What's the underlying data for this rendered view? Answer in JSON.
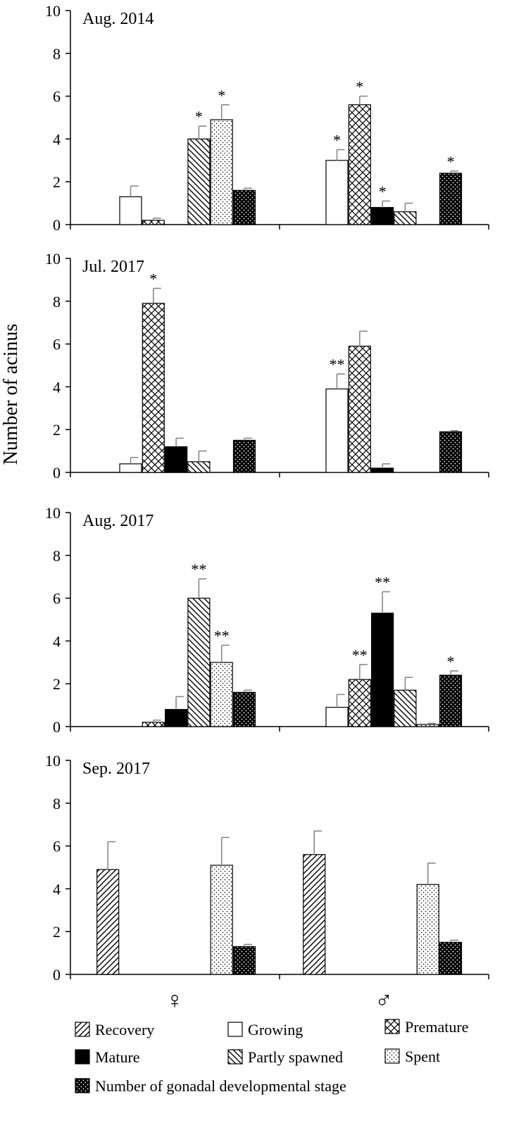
{
  "chart_data": {
    "type": "bar",
    "ylabel": "Number of acinus",
    "categories": [
      "♀",
      "♂"
    ],
    "ylim": [
      0,
      10
    ],
    "yticks": [
      0,
      2,
      4,
      6,
      8,
      10
    ],
    "legend_placement": "bottom",
    "series_styles": [
      {
        "name": "Recovery",
        "pattern": "fwd-hatch"
      },
      {
        "name": "Growing",
        "pattern": "white"
      },
      {
        "name": "Premature",
        "pattern": "crosshatch"
      },
      {
        "name": "Mature",
        "pattern": "black"
      },
      {
        "name": "Partly spawned",
        "pattern": "back-hatch"
      },
      {
        "name": "Spent",
        "pattern": "dots"
      },
      {
        "name": "Number of gonadal developmental stage",
        "pattern": "black-dots"
      }
    ],
    "legend_order": [
      0,
      1,
      2,
      3,
      4,
      5,
      6
    ],
    "panels": [
      {
        "title": "Aug. 2014",
        "groups": [
          {
            "values": [
              0,
              1.3,
              0.2,
              0,
              4.0,
              4.9,
              1.6
            ],
            "errors": [
              0,
              0.5,
              0.1,
              0,
              0.6,
              0.7,
              0.1
            ],
            "marks": [
              "",
              "",
              "",
              "",
              "*",
              "*",
              ""
            ]
          },
          {
            "values": [
              0,
              3.0,
              5.6,
              0.8,
              0.6,
              0,
              2.4
            ],
            "errors": [
              0,
              0.5,
              0.4,
              0.3,
              0.4,
              0,
              0.1
            ],
            "marks": [
              "",
              "*",
              "*",
              "*",
              "",
              "",
              "*"
            ]
          }
        ]
      },
      {
        "title": "Jul. 2017",
        "groups": [
          {
            "values": [
              0,
              0.4,
              7.9,
              1.2,
              0.5,
              0,
              1.5
            ],
            "errors": [
              0,
              0.3,
              0.7,
              0.4,
              0.5,
              0,
              0.1
            ],
            "marks": [
              "",
              "",
              "*",
              "",
              "",
              "",
              ""
            ]
          },
          {
            "values": [
              0,
              3.9,
              5.9,
              0.2,
              0,
              0,
              1.9
            ],
            "errors": [
              0,
              0.7,
              0.7,
              0.2,
              0,
              0,
              0.05
            ],
            "marks": [
              "",
              "**",
              "",
              "",
              "",
              "",
              ""
            ]
          }
        ]
      },
      {
        "title": "Aug. 2017",
        "groups": [
          {
            "values": [
              0,
              0,
              0.2,
              0.8,
              6.0,
              3.0,
              1.6
            ],
            "errors": [
              0,
              0,
              0.1,
              0.6,
              0.9,
              0.8,
              0.1
            ],
            "marks": [
              "",
              "",
              "",
              "",
              "**",
              "**",
              ""
            ]
          },
          {
            "values": [
              0,
              0.9,
              2.2,
              5.3,
              1.7,
              0.1,
              2.4
            ],
            "errors": [
              0,
              0.6,
              0.7,
              1.0,
              0.6,
              0.05,
              0.2
            ],
            "marks": [
              "",
              "",
              "**",
              "**",
              "",
              "",
              "*"
            ]
          }
        ]
      },
      {
        "title": "Sep. 2017",
        "groups": [
          {
            "values": [
              4.9,
              0,
              0,
              0,
              0,
              5.1,
              1.3
            ],
            "errors": [
              1.3,
              0,
              0,
              0,
              0,
              1.3,
              0.1
            ],
            "marks": [
              "",
              "",
              "",
              "",
              "",
              "",
              ""
            ]
          },
          {
            "values": [
              5.6,
              0,
              0,
              0,
              0,
              4.2,
              1.5
            ],
            "errors": [
              1.1,
              0,
              0,
              0,
              0.2,
              1.0,
              0.1
            ],
            "marks": [
              "",
              "",
              "",
              "",
              "",
              "",
              ""
            ]
          }
        ]
      }
    ]
  }
}
